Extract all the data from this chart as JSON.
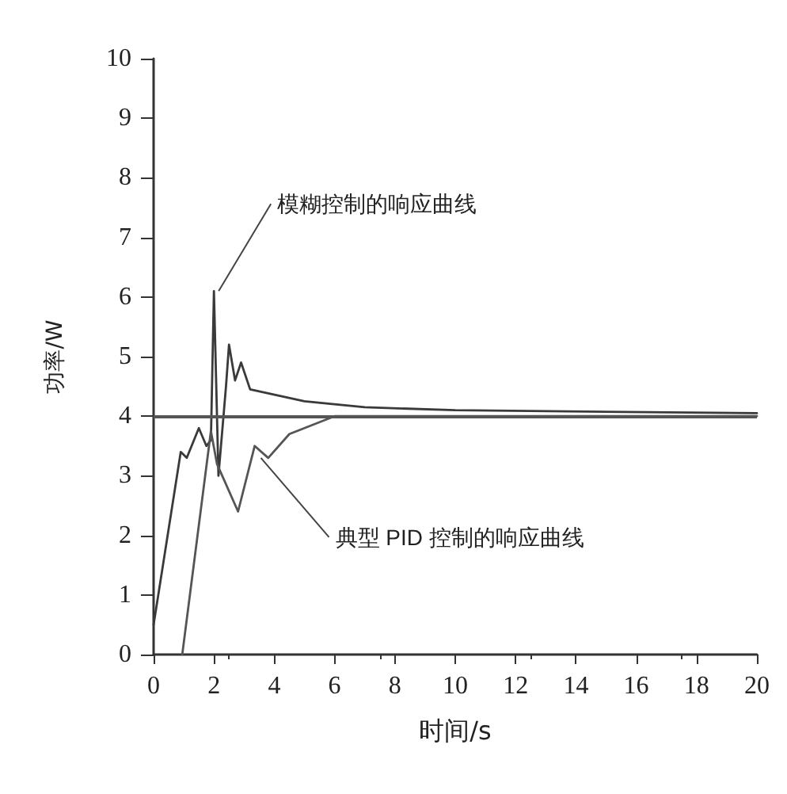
{
  "chart_data": {
    "type": "line",
    "xlabel": "时间/s",
    "ylabel": "功率/W",
    "xlim": [
      0,
      20
    ],
    "xticks": [
      0,
      2,
      4,
      6,
      8,
      10,
      12,
      14,
      16,
      18,
      20
    ],
    "ylim": [
      0,
      10
    ],
    "yticks": [
      0,
      1,
      2,
      3,
      4,
      5,
      6,
      7,
      8,
      9,
      10
    ],
    "grid": false,
    "marker": "none",
    "line_style": "solid",
    "series": [
      {
        "color": "#3a3a3a",
        "x": [
          0,
          0.9,
          1.1,
          1.5,
          1.75,
          1.9,
          2.0,
          2.15,
          2.4,
          2.5,
          2.7,
          2.9,
          3.2,
          5,
          7,
          10,
          20
        ],
        "values": [
          0.5,
          3.4,
          3.3,
          3.8,
          3.5,
          3.6,
          6.1,
          3.0,
          4.5,
          5.2,
          4.6,
          4.9,
          4.45,
          4.25,
          4.15,
          4.1,
          4.05
        ]
      },
      {
        "color": "#555555",
        "x": [
          0.95,
          1.9,
          2.1,
          2.8,
          3.35,
          3.8,
          4.5,
          6,
          20
        ],
        "values": [
          0,
          3.75,
          3.2,
          2.4,
          3.5,
          3.3,
          3.7,
          4.0,
          4.0
        ]
      }
    ],
    "ref_lines": [
      {
        "axis": "y",
        "value": 4,
        "color": "#555555"
      }
    ],
    "annotations": [
      {
        "text": "模糊控制的响应曲线",
        "x": 2.0,
        "y": 6.1
      },
      {
        "text": "典型 PID 控制的响应曲线",
        "x": 3.4,
        "y": 3.3
      }
    ]
  }
}
